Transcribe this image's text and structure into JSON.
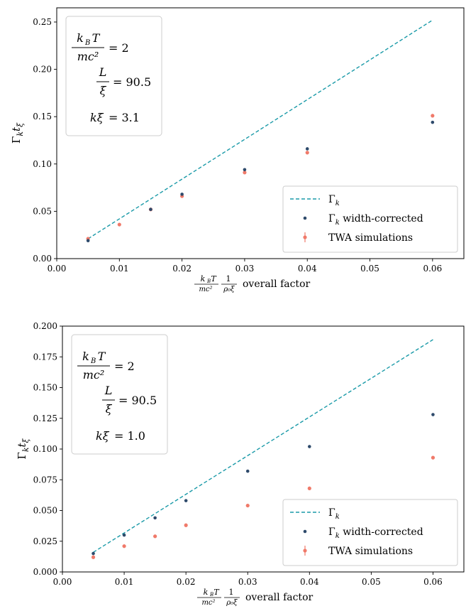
{
  "chart_data": [
    {
      "type": "scatter",
      "xlabel_suffix": "overall factor",
      "ylabel": "Γ_k t_ξ",
      "xlim": [
        0.0,
        0.065
      ],
      "ylim": [
        0.0,
        0.265
      ],
      "xticks": [
        "0.00",
        "0.01",
        "0.02",
        "0.03",
        "0.04",
        "0.05",
        "0.06"
      ],
      "yticks": [
        "0.00",
        "0.05",
        "0.10",
        "0.15",
        "0.20",
        "0.25"
      ],
      "params": {
        "kBT_over_mc2": "2",
        "L_over_xi": "90.5",
        "k_xi": "3.1"
      },
      "legend_position": "lower right",
      "series": [
        {
          "name": "Γ_k",
          "style": "dashed-line",
          "color": "#1a9aa8",
          "x": [
            0.005,
            0.06
          ],
          "y": [
            0.021,
            0.252
          ]
        },
        {
          "name": "Γ_k width-corrected",
          "style": "dot",
          "color": "#2e4a6b",
          "x": [
            0.005,
            0.015,
            0.02,
            0.03,
            0.04,
            0.06
          ],
          "y": [
            0.019,
            0.052,
            0.068,
            0.094,
            0.116,
            0.144
          ]
        },
        {
          "name": "TWA simulations",
          "style": "errorbar-dot",
          "color": "#f07a6a",
          "x": [
            0.005,
            0.01,
            0.015,
            0.02,
            0.03,
            0.04,
            0.06
          ],
          "y": [
            0.021,
            0.036,
            0.052,
            0.066,
            0.091,
            0.112,
            0.151
          ]
        }
      ]
    },
    {
      "type": "scatter",
      "xlabel_suffix": "overall factor",
      "ylabel": "Γ_k t_ξ",
      "xlim": [
        0.0,
        0.065
      ],
      "ylim": [
        0.0,
        0.2
      ],
      "xticks": [
        "0.00",
        "0.01",
        "0.02",
        "0.03",
        "0.04",
        "0.05",
        "0.06"
      ],
      "yticks": [
        "0.000",
        "0.025",
        "0.050",
        "0.075",
        "0.100",
        "0.125",
        "0.150",
        "0.175",
        "0.200"
      ],
      "params": {
        "kBT_over_mc2": "2",
        "L_over_xi": "90.5",
        "k_xi": "1.0"
      },
      "legend_position": "lower right",
      "series": [
        {
          "name": "Γ_k",
          "style": "dashed-line",
          "color": "#1a9aa8",
          "x": [
            0.005,
            0.06
          ],
          "y": [
            0.016,
            0.189
          ]
        },
        {
          "name": "Γ_k width-corrected",
          "style": "dot",
          "color": "#2e4a6b",
          "x": [
            0.005,
            0.01,
            0.015,
            0.02,
            0.03,
            0.04,
            0.06
          ],
          "y": [
            0.015,
            0.03,
            0.044,
            0.058,
            0.082,
            0.102,
            0.128
          ]
        },
        {
          "name": "TWA simulations",
          "style": "errorbar-dot",
          "color": "#f07a6a",
          "x": [
            0.005,
            0.01,
            0.015,
            0.02,
            0.03,
            0.04,
            0.06
          ],
          "y": [
            0.012,
            0.021,
            0.029,
            0.038,
            0.054,
            0.068,
            0.093
          ]
        }
      ]
    }
  ]
}
